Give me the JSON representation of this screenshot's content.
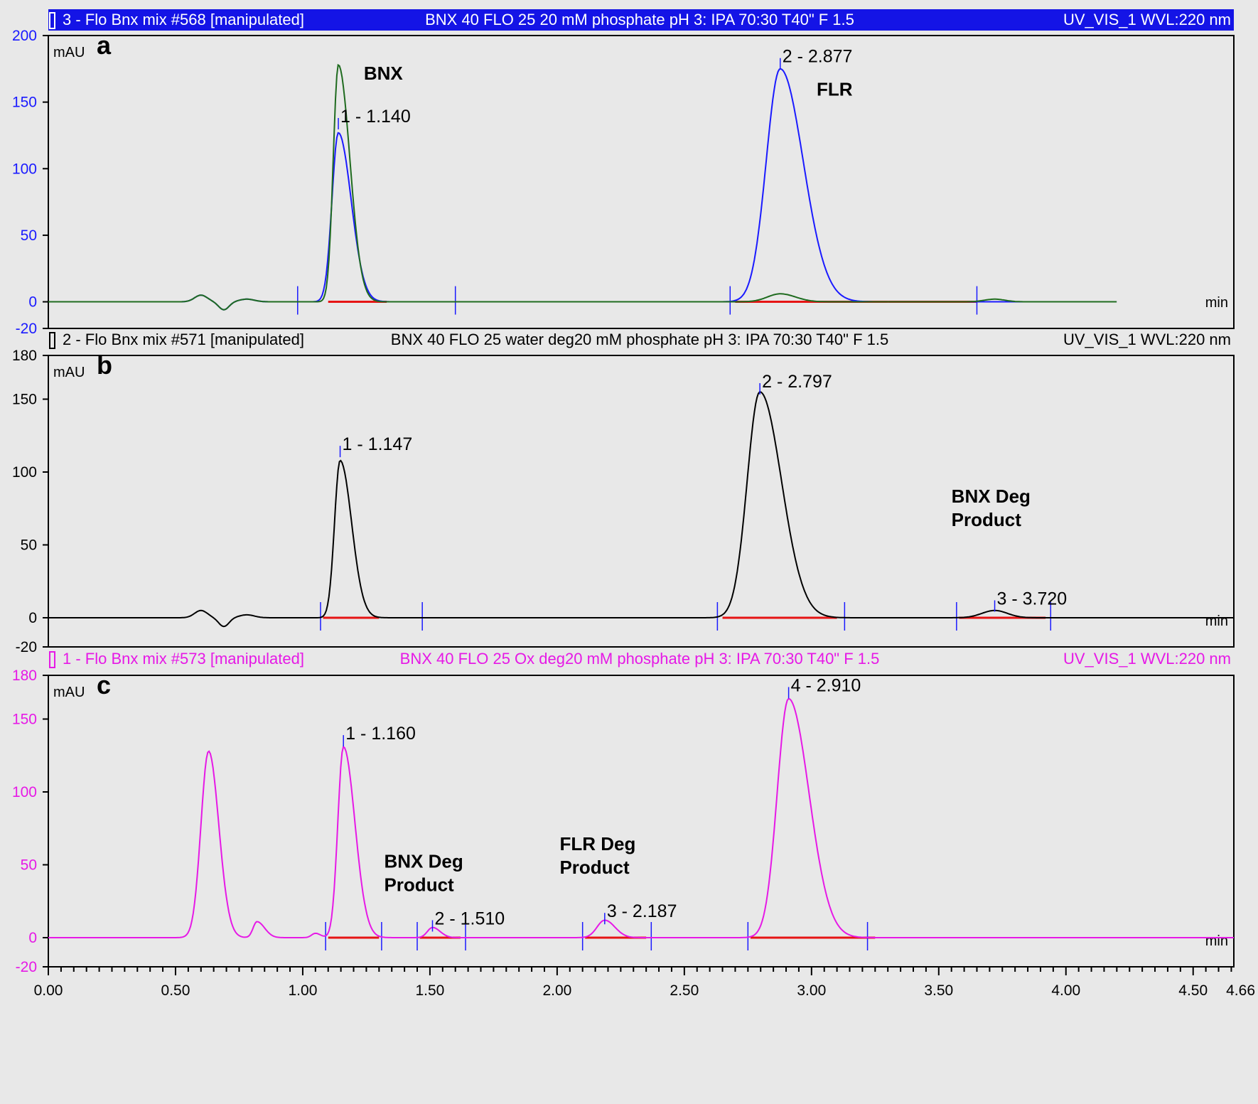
{
  "chart_data": [
    {
      "type": "line",
      "panel_label": "a",
      "header": {
        "left": "3 - Flo Bnx mix #568 [manipulated]",
        "center": "BNX 40 FLO 25 20 mM phosphate pH 3: IPA 70:30 T40\" F 1.5",
        "right": "UV_VIS_1 WVL:220 nm",
        "background": "#1414e6",
        "text_color": "#ffffff"
      },
      "ylabel": "mAU",
      "xlabel": "min",
      "ylim": [
        -20,
        200
      ],
      "yticks": [
        -20,
        0,
        50,
        100,
        150,
        200
      ],
      "ytick_color": "#1a1aff",
      "series": [
        {
          "color": "#1a1aff",
          "baseline_wiggles": true,
          "peaks": [
            {
              "rt": 1.14,
              "height": 127,
              "sigma": 0.025,
              "tail": 0.05
            },
            {
              "rt": 2.877,
              "height": 175,
              "sigma": 0.055,
              "tail": 0.09
            }
          ]
        },
        {
          "color": "#1f6b1f",
          "baseline_wiggles": true,
          "peaks": [
            {
              "rt": 1.14,
              "height": 178,
              "sigma": 0.02,
              "tail": 0.045
            },
            {
              "rt": 2.877,
              "height": 6,
              "sigma": 0.05,
              "tail": 0.06
            },
            {
              "rt": 3.72,
              "height": 2,
              "sigma": 0.04,
              "tail": 0.04
            }
          ]
        }
      ],
      "peak_labels": [
        {
          "text": "1 - 1.140",
          "rt": 1.14,
          "y": 137
        },
        {
          "text": "2 - 2.877",
          "rt": 2.877,
          "y": 182
        }
      ],
      "annotations": [
        {
          "lines": [
            "BNX"
          ],
          "x": 1.24,
          "y": 167
        },
        {
          "lines": [
            "FLR"
          ],
          "x": 3.02,
          "y": 155
        }
      ],
      "integration_ticks": [
        0.98,
        1.6,
        2.68,
        3.65
      ],
      "baseline_segments": [
        [
          1.1,
          1.33
        ],
        [
          2.7,
          3.3
        ],
        [
          3.3,
          3.65
        ]
      ]
    },
    {
      "type": "line",
      "panel_label": "b",
      "header": {
        "left": "2 - Flo Bnx mix #571 [manipulated]",
        "center": "BNX 40 FLO 25  water deg20 mM phosphate pH 3: IPA 70:30 T40\" F 1.5",
        "right": "UV_VIS_1 WVL:220 nm",
        "background": "#e8e8e8",
        "text_color": "#000000"
      },
      "ylabel": "mAU",
      "xlabel": "min",
      "ylim": [
        -20,
        180
      ],
      "yticks": [
        -20,
        0,
        50,
        100,
        150,
        180
      ],
      "ytick_color": "#000000",
      "series": [
        {
          "color": "#000000",
          "baseline_wiggles": true,
          "peaks": [
            {
              "rt": 1.147,
              "height": 108,
              "sigma": 0.022,
              "tail": 0.045
            },
            {
              "rt": 2.797,
              "height": 155,
              "sigma": 0.05,
              "tail": 0.085
            },
            {
              "rt": 3.72,
              "height": 5,
              "sigma": 0.05,
              "tail": 0.05
            }
          ]
        }
      ],
      "peak_labels": [
        {
          "text": "1 - 1.147",
          "rt": 1.147,
          "y": 117
        },
        {
          "text": "2 - 2.797",
          "rt": 2.797,
          "y": 160
        },
        {
          "text": "3 - 3.720",
          "rt": 3.72,
          "y": 11
        }
      ],
      "annotations": [
        {
          "lines": [
            "BNX  Deg",
            "Product"
          ],
          "x": 3.55,
          "y": 79
        }
      ],
      "integration_ticks": [
        1.07,
        1.47,
        2.63,
        3.13,
        3.57,
        3.94
      ],
      "baseline_segments": [
        [
          1.08,
          1.3
        ],
        [
          2.65,
          3.1
        ],
        [
          3.58,
          3.92
        ]
      ]
    },
    {
      "type": "line",
      "panel_label": "c",
      "header": {
        "left": "1 - Flo Bnx mix #573 [manipulated]",
        "center": "BNX 40 FLO 25  Ox deg20 mM phosphate pH 3: IPA 70:30 T40\" F 1.5",
        "right": "UV_VIS_1 WVL:220 nm",
        "background": "#e8e8e8",
        "text_color": "#e619e6"
      },
      "ylabel": "mAU",
      "xlabel": "min",
      "ylim": [
        -20,
        180
      ],
      "yticks": [
        -20,
        0,
        50,
        100,
        150,
        180
      ],
      "ytick_color": "#e619e6",
      "series": [
        {
          "color": "#e619e6",
          "baseline_wiggles": false,
          "peaks": [
            {
              "rt": 0.63,
              "height": 128,
              "sigma": 0.03,
              "tail": 0.04
            },
            {
              "rt": 0.82,
              "height": 11,
              "sigma": 0.015,
              "tail": 0.03
            },
            {
              "rt": 1.05,
              "height": 3,
              "sigma": 0.015,
              "tail": 0.02
            },
            {
              "rt": 1.16,
              "height": 131,
              "sigma": 0.022,
              "tail": 0.045
            },
            {
              "rt": 1.51,
              "height": 7,
              "sigma": 0.02,
              "tail": 0.03
            },
            {
              "rt": 2.187,
              "height": 12,
              "sigma": 0.03,
              "tail": 0.04
            },
            {
              "rt": 2.91,
              "height": 164,
              "sigma": 0.045,
              "tail": 0.08
            }
          ]
        }
      ],
      "peak_labels": [
        {
          "text": "1 - 1.160",
          "rt": 1.16,
          "y": 138
        },
        {
          "text": "2 - 1.510",
          "rt": 1.51,
          "y": 11
        },
        {
          "text": "3 - 2.187",
          "rt": 2.187,
          "y": 16
        },
        {
          "text": "4 - 2.910",
          "rt": 2.91,
          "y": 171
        }
      ],
      "annotations": [
        {
          "lines": [
            "BNX  Deg",
            "Product"
          ],
          "x": 1.32,
          "y": 48
        },
        {
          "lines": [
            "FLR  Deg",
            "Product"
          ],
          "x": 2.01,
          "y": 60
        }
      ],
      "integration_ticks": [
        1.09,
        1.31,
        1.45,
        1.64,
        2.1,
        2.37,
        2.75,
        3.22
      ],
      "baseline_segments": [
        [
          1.1,
          1.3
        ],
        [
          1.46,
          1.62
        ],
        [
          2.11,
          2.35
        ],
        [
          2.76,
          3.25
        ]
      ]
    }
  ],
  "x_axis": {
    "range": [
      0,
      4.66
    ],
    "ticks": [
      "0.00",
      "0.50",
      "1.00",
      "1.50",
      "2.00",
      "2.50",
      "3.00",
      "3.50",
      "4.00",
      "4.50",
      "4.66"
    ]
  },
  "colors": {
    "baseline": "#e61414",
    "frame": "#000000",
    "background": "#e8e8e8"
  }
}
